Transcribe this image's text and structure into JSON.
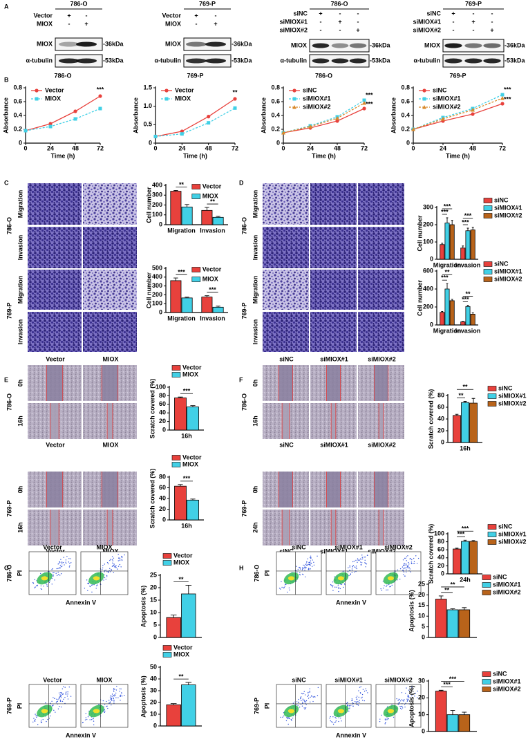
{
  "panel_labels": [
    "A",
    "B",
    "C",
    "D",
    "E",
    "F",
    "G",
    "H"
  ],
  "blots": [
    {
      "title": "786-O",
      "conditions": [
        {
          "name": "Vector",
          "signs": [
            "+",
            "-"
          ]
        },
        {
          "name": "MIOX",
          "signs": [
            "-",
            "+"
          ]
        }
      ],
      "bands": [
        {
          "name": "MIOX",
          "size": "-36kDa"
        },
        {
          "name": "α-tubulin",
          "size": "-53kDa"
        }
      ]
    },
    {
      "title": "769-P",
      "conditions": [
        {
          "name": "Vector",
          "signs": [
            "+",
            "-"
          ]
        },
        {
          "name": "MIOX",
          "signs": [
            "-",
            "+"
          ]
        }
      ],
      "bands": [
        {
          "name": "MIOX",
          "size": "-36kDa"
        },
        {
          "name": "α-tubulin",
          "size": "-53kDa"
        }
      ]
    },
    {
      "title": "786-O",
      "conditions": [
        {
          "name": "siNC",
          "signs": [
            "+",
            "-",
            "-"
          ]
        },
        {
          "name": "siMIOX#1",
          "signs": [
            "-",
            "+",
            "-"
          ]
        },
        {
          "name": "siMIOX#2",
          "signs": [
            "-",
            "-",
            "+"
          ]
        }
      ],
      "bands": [
        {
          "name": "MIOX",
          "size": "-36kDa"
        },
        {
          "name": "α-tubulin",
          "size": "-53kDa"
        }
      ]
    },
    {
      "title": "769-P",
      "conditions": [
        {
          "name": "siNC",
          "signs": [
            "+",
            "-",
            "-"
          ]
        },
        {
          "name": "siMIOX#1",
          "signs": [
            "-",
            "+",
            "-"
          ]
        },
        {
          "name": "siMIOX#2",
          "signs": [
            "-",
            "-",
            "+"
          ]
        }
      ],
      "bands": [
        {
          "name": "MIOX",
          "size": "-36kDa"
        },
        {
          "name": "α-tubulin",
          "size": "-53kDa"
        }
      ]
    }
  ],
  "image_grids": [
    {
      "blocks": [
        {
          "name": "786-O",
          "rows": [
            "Migration",
            "Invasion"
          ]
        },
        {
          "name": "769-P",
          "rows": [
            "Migration",
            "Invasion"
          ]
        }
      ],
      "columns": [
        "Vector",
        "MIOX"
      ]
    },
    {
      "blocks": [
        {
          "name": "786-O",
          "rows": [
            "Migration",
            "Invasion"
          ]
        },
        {
          "name": "769-P",
          "rows": [
            "Migration",
            "Invasion"
          ]
        }
      ],
      "columns": [
        "siNC",
        "siMIOX#1",
        "siMIOX#2"
      ]
    },
    {
      "blocks": [
        {
          "name": "786-O",
          "rows": [
            "0h",
            "16h"
          ],
          "columns": [
            "Vector",
            "MIOX"
          ]
        },
        {
          "name": "769-P",
          "rows": [
            "0h",
            "16h"
          ],
          "columns": [
            "Vector",
            "MIOX"
          ]
        }
      ]
    },
    {
      "blocks": [
        {
          "name": "786-O",
          "rows": [
            "0h",
            "16h"
          ],
          "columns": [
            "siNC",
            "siMIOX#1",
            "siMIOX#2"
          ]
        },
        {
          "name": "769-P",
          "rows": [
            "0h",
            "24h"
          ],
          "columns": [
            "siNC",
            "siMIOX#1",
            "siMIOX#2"
          ]
        }
      ]
    }
  ],
  "flow_grids": [
    {
      "blocks": [
        {
          "name": "786-O",
          "columns": [
            "Vector",
            "MIOX"
          ],
          "y_label": "PI",
          "x_label": "Annexin V"
        },
        {
          "name": "769-P",
          "columns": [
            "Vector",
            "MIOX"
          ],
          "y_label": "PI",
          "x_label": "Annexin V"
        }
      ]
    },
    {
      "blocks": [
        {
          "name": "786-O",
          "columns": [
            "siNC",
            "siMIOX#1",
            "siMIOX#2"
          ],
          "y_label": "PI",
          "x_label": "Annexin V"
        },
        {
          "name": "769-P",
          "columns": [
            "siNC",
            "siMIOX#1",
            "siMIOX#2"
          ],
          "y_label": "PI",
          "x_label": "Annexin V"
        }
      ]
    }
  ],
  "chart_data": [
    {
      "type": "line",
      "title": "786-O",
      "x_label": "Time (h)",
      "y_label": "Absorbance",
      "x": [
        0,
        24,
        48,
        72
      ],
      "xlim": [
        0,
        72
      ],
      "xticks": [
        0,
        24,
        48,
        72
      ],
      "ylim": [
        0,
        0.8
      ],
      "yticks": [
        0,
        0.2,
        0.4,
        0.6,
        0.8
      ],
      "legend": "upper left",
      "annotations": [
        "***"
      ],
      "series": [
        {
          "name": "Vector",
          "color": "#e8413c",
          "marker": "circle",
          "line_style": "solid",
          "values": [
            0.18,
            0.28,
            0.46,
            0.68
          ]
        },
        {
          "name": "MIOX",
          "color": "#41d0e6",
          "marker": "square",
          "line_style": "dashed",
          "values": [
            0.18,
            0.24,
            0.35,
            0.5
          ]
        }
      ]
    },
    {
      "type": "line",
      "title": "769-P",
      "x_label": "Time (h)",
      "y_label": "Absorbance",
      "x": [
        0,
        24,
        48,
        72
      ],
      "xlim": [
        0,
        72
      ],
      "xticks": [
        0,
        24,
        48,
        72
      ],
      "ylim": [
        0,
        1.5
      ],
      "yticks": [
        0,
        0.5,
        {
          "value": 1,
          "label": "1.0"
        },
        1.5
      ],
      "legend": "upper left",
      "annotations": [
        "**"
      ],
      "series": [
        {
          "name": "Vector",
          "color": "#e8413c",
          "marker": "circle",
          "line_style": "solid",
          "values": [
            0.18,
            0.32,
            0.72,
            1.2
          ]
        },
        {
          "name": "MIOX",
          "color": "#41d0e6",
          "marker": "square",
          "line_style": "dashed",
          "values": [
            0.18,
            0.25,
            0.55,
            0.95
          ]
        }
      ]
    },
    {
      "type": "line",
      "title": "786-O",
      "x_label": "Time (h)",
      "y_label": "Absorbance",
      "x": [
        0,
        24,
        48,
        72
      ],
      "xlim": [
        0,
        72
      ],
      "xticks": [
        0,
        24,
        48,
        72
      ],
      "ylim": [
        0,
        0.8
      ],
      "yticks": [
        0,
        0.2,
        0.4,
        0.6,
        0.8
      ],
      "legend": "upper left",
      "annotations": [
        "***",
        "***"
      ],
      "series": [
        {
          "name": "siNC",
          "color": "#e8413c",
          "marker": "circle",
          "line_style": "solid",
          "values": [
            0.15,
            0.22,
            0.32,
            0.5
          ]
        },
        {
          "name": "siMIOX#1",
          "color": "#41d0e6",
          "marker": "square",
          "line_style": "dashed",
          "values": [
            0.15,
            0.25,
            0.38,
            0.62
          ]
        },
        {
          "name": "siMIOX#2",
          "color": "#d98a2b",
          "marker": "triangle",
          "line_style": "dashed",
          "values": [
            0.15,
            0.24,
            0.36,
            0.58
          ]
        }
      ]
    },
    {
      "type": "line",
      "title": "769-P",
      "x_label": "Time (h)",
      "y_label": "Absorbance",
      "x": [
        0,
        24,
        48,
        72
      ],
      "xlim": [
        0,
        72
      ],
      "xticks": [
        0,
        24,
        48,
        72
      ],
      "ylim": [
        0,
        0.8
      ],
      "yticks": [
        0,
        0.2,
        0.4,
        0.6,
        0.8
      ],
      "legend": "upper left",
      "annotations": [
        "***",
        "***"
      ],
      "series": [
        {
          "name": "siNC",
          "color": "#e8413c",
          "marker": "circle",
          "line_style": "solid",
          "values": [
            0.2,
            0.32,
            0.42,
            0.57
          ]
        },
        {
          "name": "siMIOX#1",
          "color": "#41d0e6",
          "marker": "square",
          "line_style": "dashed",
          "values": [
            0.2,
            0.37,
            0.5,
            0.7
          ]
        },
        {
          "name": "siMIOX#2",
          "color": "#d98a2b",
          "marker": "triangle",
          "line_style": "dashed",
          "values": [
            0.2,
            0.35,
            0.48,
            0.65
          ]
        }
      ]
    },
    {
      "type": "bar",
      "y_label": "Cell number",
      "categories": [
        "Migration",
        "Invasion"
      ],
      "ylim": [
        0,
        400
      ],
      "yticks": [
        0,
        100,
        200,
        300,
        400
      ],
      "legend": "upper right",
      "annotations": [
        "**",
        "**"
      ],
      "series": [
        {
          "name": "Vector",
          "color": "#e8413c",
          "values": [
            340,
            145
          ],
          "errors": [
            8,
            30
          ]
        },
        {
          "name": "MIOX",
          "color": "#41d0e6",
          "values": [
            180,
            75
          ],
          "errors": [
            25,
            10
          ]
        }
      ]
    },
    {
      "type": "bar",
      "y_label": "Cell number",
      "categories": [
        "Migration",
        "Invasion"
      ],
      "ylim": [
        0,
        500
      ],
      "yticks": [
        0,
        100,
        200,
        300,
        400,
        500
      ],
      "legend": "upper right",
      "annotations": [
        "***",
        "***"
      ],
      "series": [
        {
          "name": "Vector",
          "color": "#e8413c",
          "values": [
            360,
            175
          ],
          "errors": [
            30,
            15
          ]
        },
        {
          "name": "MIOX",
          "color": "#41d0e6",
          "values": [
            165,
            60
          ],
          "errors": [
            8,
            12
          ]
        }
      ]
    },
    {
      "type": "bar",
      "y_label": "Cell number",
      "categories": [
        "Migration",
        "Invasion"
      ],
      "ylim": [
        0,
        300
      ],
      "yticks": [
        0,
        100,
        200,
        300
      ],
      "legend": "right",
      "annotations": [
        "***",
        "***",
        "***",
        "***"
      ],
      "series": [
        {
          "name": "siNC",
          "color": "#e8413c",
          "values": [
            85,
            65
          ],
          "errors": [
            8,
            12
          ]
        },
        {
          "name": "siMIOX#1",
          "color": "#41d0e6",
          "values": [
            210,
            165
          ],
          "errors": [
            30,
            15
          ]
        },
        {
          "name": "siMIOX#2",
          "color": "#b8631a",
          "values": [
            200,
            170
          ],
          "errors": [
            25,
            15
          ]
        }
      ]
    },
    {
      "type": "bar",
      "y_label": "Cell number",
      "categories": [
        "Migration",
        "Invasion"
      ],
      "ylim": [
        0,
        600
      ],
      "yticks": [
        0,
        200,
        400,
        600
      ],
      "legend": "right",
      "annotations": [
        "***",
        "**",
        "***",
        "**"
      ],
      "series": [
        {
          "name": "siNC",
          "color": "#e8413c",
          "values": [
            140,
            35
          ],
          "errors": [
            10,
            5
          ]
        },
        {
          "name": "siMIOX#1",
          "color": "#41d0e6",
          "values": [
            400,
            205
          ],
          "errors": [
            60,
            15
          ]
        },
        {
          "name": "siMIOX#2",
          "color": "#b8631a",
          "values": [
            270,
            120
          ],
          "errors": [
            15,
            15
          ]
        }
      ]
    },
    {
      "type": "bar",
      "y_label": "Scratch covered (%)",
      "categories": [
        "16h"
      ],
      "ylim": [
        0,
        100
      ],
      "yticks": [
        0,
        20,
        40,
        60,
        80,
        100
      ],
      "legend": "top",
      "annotations": [
        "***"
      ],
      "series": [
        {
          "name": "Vector",
          "color": "#e8413c",
          "values": [
            75
          ],
          "errors": [
            2
          ]
        },
        {
          "name": "MIOX",
          "color": "#41d0e6",
          "values": [
            54
          ],
          "errors": [
            3
          ]
        }
      ]
    },
    {
      "type": "bar",
      "y_label": "Scratch covered (%)",
      "categories": [
        "16h"
      ],
      "ylim": [
        0,
        80
      ],
      "yticks": [
        0,
        20,
        40,
        60,
        80
      ],
      "legend": "top",
      "annotations": [
        "***"
      ],
      "series": [
        {
          "name": "Vector",
          "color": "#e8413c",
          "values": [
            63
          ],
          "errors": [
            3
          ]
        },
        {
          "name": "MIOX",
          "color": "#41d0e6",
          "values": [
            37
          ],
          "errors": [
            2
          ]
        }
      ]
    },
    {
      "type": "bar",
      "y_label": "Scratch covered (%)",
      "categories": [
        "16h"
      ],
      "ylim": [
        0,
        80
      ],
      "yticks": [
        0,
        20,
        40,
        60,
        80
      ],
      "legend": "right",
      "annotations": [
        "**",
        "**"
      ],
      "series": [
        {
          "name": "siNC",
          "color": "#e8413c",
          "values": [
            46
          ],
          "errors": [
            2
          ]
        },
        {
          "name": "siMIOX#1",
          "color": "#41d0e6",
          "values": [
            68
          ],
          "errors": [
            2
          ]
        },
        {
          "name": "siMIOX#2",
          "color": "#b8631a",
          "values": [
            67
          ],
          "errors": [
            8
          ]
        }
      ]
    },
    {
      "type": "bar",
      "y_label": "Scratch covered (%)",
      "categories": [
        "24h"
      ],
      "ylim": [
        0,
        100
      ],
      "yticks": [
        0,
        20,
        40,
        60,
        80,
        100
      ],
      "legend": "right",
      "annotations": [
        "***",
        "***"
      ],
      "series": [
        {
          "name": "siNC",
          "color": "#e8413c",
          "values": [
            62
          ],
          "errors": [
            2
          ]
        },
        {
          "name": "siMIOX#1",
          "color": "#41d0e6",
          "values": [
            81
          ],
          "errors": [
            3
          ]
        },
        {
          "name": "siMIOX#2",
          "color": "#b8631a",
          "values": [
            81
          ],
          "errors": [
            2
          ]
        }
      ]
    },
    {
      "type": "bar",
      "y_label": "Apoptosis (%)",
      "categories": [
        null
      ],
      "ylim": [
        0,
        25
      ],
      "yticks": [
        0,
        5,
        10,
        15,
        20,
        25
      ],
      "legend": "top",
      "annotations": [
        "**"
      ],
      "series": [
        {
          "name": "Vector",
          "color": "#e8413c",
          "values": [
            8
          ],
          "errors": [
            1
          ]
        },
        {
          "name": "MIOX",
          "color": "#41d0e6",
          "values": [
            17.5
          ],
          "errors": [
            3.5
          ]
        }
      ]
    },
    {
      "type": "bar",
      "y_label": "Apoptosis (%)",
      "categories": [
        null
      ],
      "ylim": [
        0,
        50
      ],
      "yticks": [
        0,
        10,
        20,
        30,
        40,
        50
      ],
      "legend": "top",
      "annotations": [
        "**"
      ],
      "series": [
        {
          "name": "Vector",
          "color": "#e8413c",
          "values": [
            18
          ],
          "errors": [
            1
          ]
        },
        {
          "name": "MIOX",
          "color": "#41d0e6",
          "values": [
            35
          ],
          "errors": [
            2
          ]
        }
      ]
    },
    {
      "type": "bar",
      "y_label": "Apoptosis (%)",
      "categories": [
        null
      ],
      "ylim": [
        0,
        25
      ],
      "yticks": [
        0,
        5,
        10,
        15,
        20,
        25
      ],
      "legend": "right",
      "annotations": [
        "**",
        "**"
      ],
      "series": [
        {
          "name": "siNC",
          "color": "#e8413c",
          "values": [
            18
          ],
          "errors": [
            1.5
          ]
        },
        {
          "name": "siMIOX#1",
          "color": "#41d0e6",
          "values": [
            13
          ],
          "errors": [
            0.5
          ]
        },
        {
          "name": "siMIOX#2",
          "color": "#b8631a",
          "values": [
            13
          ],
          "errors": [
            1
          ]
        }
      ]
    },
    {
      "type": "bar",
      "y_label": "Apoptosis (%)",
      "categories": [
        null
      ],
      "ylim": [
        0,
        30
      ],
      "yticks": [
        0,
        10,
        20,
        30
      ],
      "legend": "right",
      "annotations": [
        "***",
        "***"
      ],
      "series": [
        {
          "name": "siNC",
          "color": "#e8413c",
          "values": [
            24
          ],
          "errors": [
            0.5
          ]
        },
        {
          "name": "siMIOX#1",
          "color": "#41d0e6",
          "values": [
            10
          ],
          "errors": [
            2.5
          ]
        },
        {
          "name": "siMIOX#2",
          "color": "#b8631a",
          "values": [
            10
          ],
          "errors": [
            1.5
          ]
        }
      ]
    }
  ]
}
